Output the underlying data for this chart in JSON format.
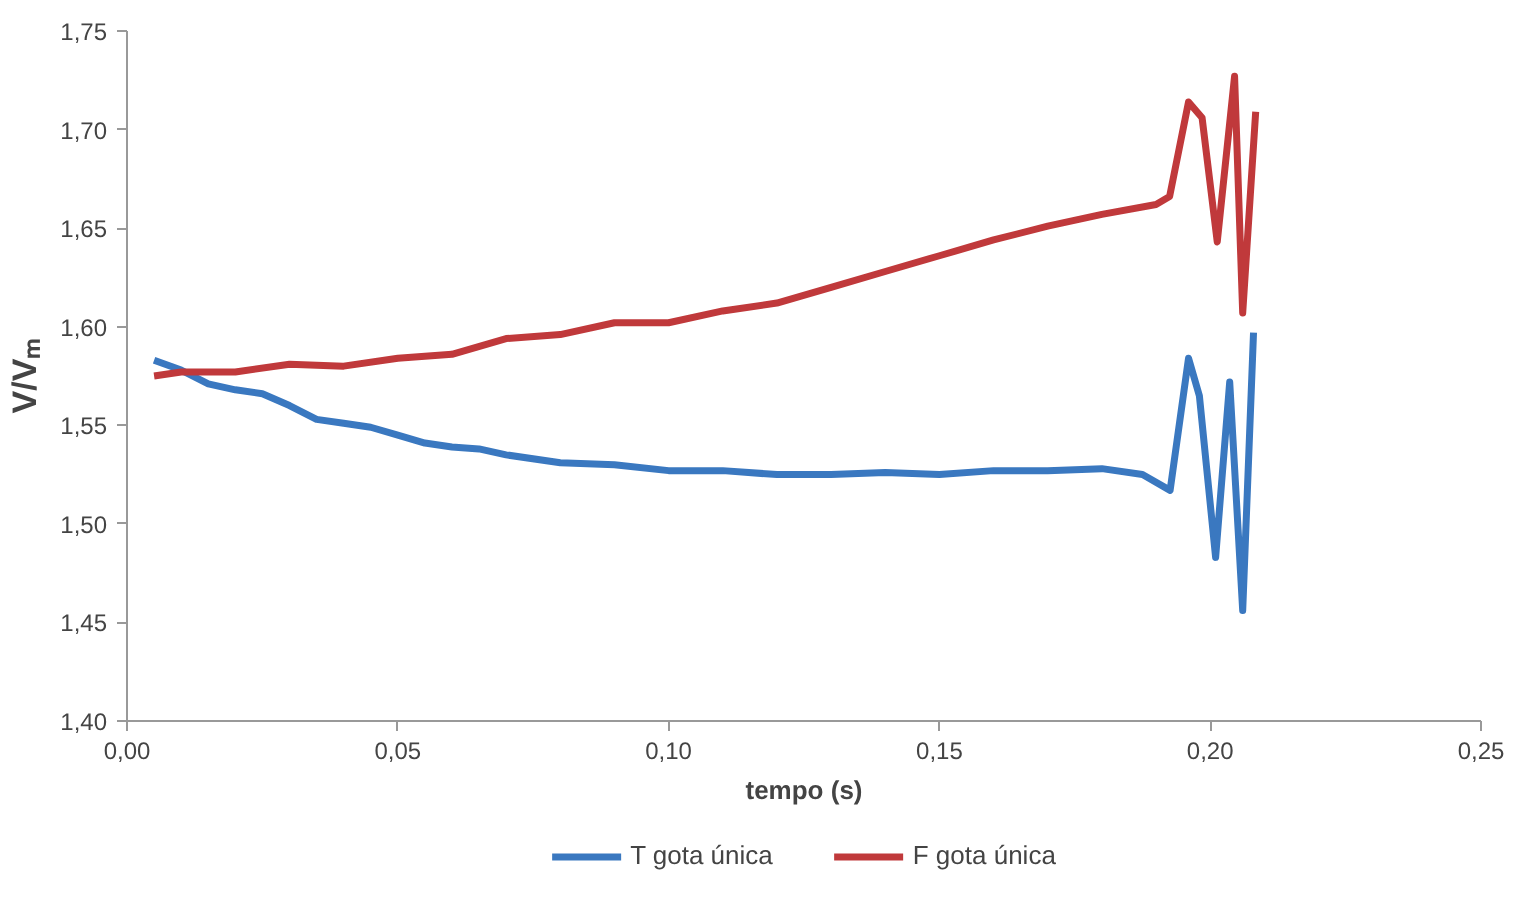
{
  "chart_data": {
    "type": "line",
    "xlabel": "tempo (s)",
    "ylabel": "V/Vₘ",
    "xlim": [
      0,
      0.25
    ],
    "ylim": [
      1.4,
      1.75
    ],
    "xticks": [
      {
        "value": 0,
        "label": "0,00"
      },
      {
        "value": 0.05,
        "label": "0,05"
      },
      {
        "value": 0.1,
        "label": "0,10"
      },
      {
        "value": 0.15,
        "label": "0,15"
      },
      {
        "value": 0.2,
        "label": "0,20"
      },
      {
        "value": 0.25,
        "label": "0,25"
      }
    ],
    "yticks": [
      {
        "value": 1.4,
        "label": "1,40"
      },
      {
        "value": 1.45,
        "label": "1,45"
      },
      {
        "value": 1.5,
        "label": "1,50"
      },
      {
        "value": 1.55,
        "label": "1,55"
      },
      {
        "value": 1.6,
        "label": "1,60"
      },
      {
        "value": 1.65,
        "label": "1,65"
      },
      {
        "value": 1.7,
        "label": "1,70"
      },
      {
        "value": 1.75,
        "label": "1,75"
      }
    ],
    "grid": false,
    "legend": "bottom",
    "series": [
      {
        "name": "T gota única",
        "color": "#3a78c0",
        "x": [
          0.005,
          0.01,
          0.015,
          0.02,
          0.025,
          0.03,
          0.035,
          0.04,
          0.045,
          0.05,
          0.055,
          0.06,
          0.065,
          0.07,
          0.08,
          0.09,
          0.1,
          0.11,
          0.12,
          0.13,
          0.14,
          0.15,
          0.16,
          0.17,
          0.18,
          0.1875,
          0.1926,
          0.196,
          0.198,
          0.201,
          0.2036,
          0.206,
          0.208
        ],
        "values": [
          1.583,
          1.578,
          1.571,
          1.568,
          1.566,
          1.56,
          1.553,
          1.551,
          1.549,
          1.545,
          1.541,
          1.539,
          1.538,
          1.535,
          1.531,
          1.53,
          1.527,
          1.527,
          1.525,
          1.525,
          1.526,
          1.525,
          1.527,
          1.527,
          1.528,
          1.525,
          1.517,
          1.584,
          1.565,
          1.483,
          1.572,
          1.456,
          1.597
        ]
      },
      {
        "name": "F gota única",
        "color": "#c0393b",
        "x": [
          0.005,
          0.01,
          0.02,
          0.03,
          0.04,
          0.05,
          0.06,
          0.07,
          0.08,
          0.09,
          0.1,
          0.11,
          0.12,
          0.13,
          0.14,
          0.15,
          0.16,
          0.17,
          0.18,
          0.19,
          0.1925,
          0.196,
          0.1985,
          0.2013,
          0.2045,
          0.206,
          0.2072,
          0.2084
        ],
        "values": [
          1.575,
          1.577,
          1.577,
          1.581,
          1.58,
          1.584,
          1.586,
          1.594,
          1.596,
          1.602,
          1.602,
          1.608,
          1.612,
          1.62,
          1.628,
          1.636,
          1.644,
          1.651,
          1.657,
          1.662,
          1.666,
          1.714,
          1.706,
          1.643,
          1.727,
          1.607,
          1.658,
          1.709
        ]
      }
    ]
  }
}
